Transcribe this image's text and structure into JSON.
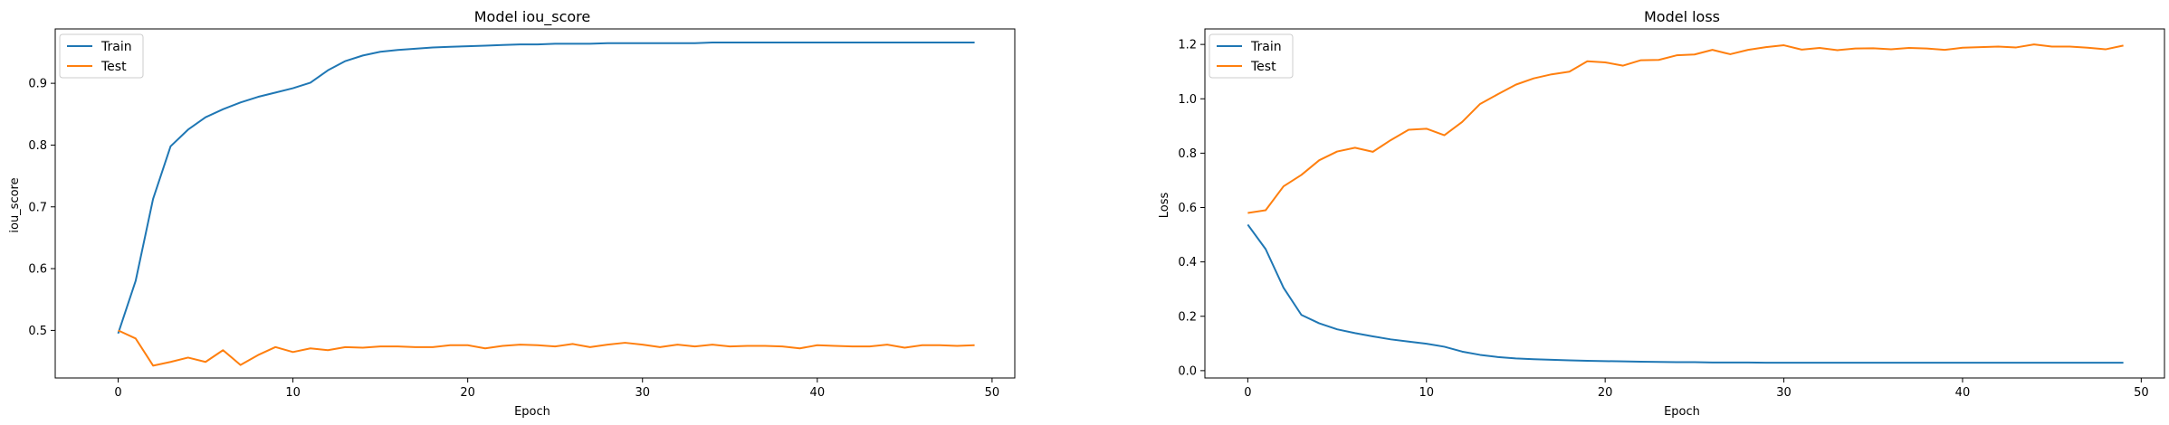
{
  "chart_data": [
    {
      "type": "line",
      "title": "Model iou_score",
      "xlabel": "Epoch",
      "ylabel": "iou_score",
      "xlim": [
        -3.6,
        51.3
      ],
      "ylim": [
        0.423,
        0.988
      ],
      "xticks": [
        0,
        10,
        20,
        30,
        40,
        50
      ],
      "yticks": [
        0.5,
        0.6,
        0.7,
        0.8,
        0.9
      ],
      "ytick_decimals": 1,
      "grid": false,
      "legend": "top-left",
      "x": [
        0,
        1,
        2,
        3,
        4,
        5,
        6,
        7,
        8,
        9,
        10,
        11,
        12,
        13,
        14,
        15,
        16,
        17,
        18,
        19,
        20,
        21,
        22,
        23,
        24,
        25,
        26,
        27,
        28,
        29,
        30,
        31,
        32,
        33,
        34,
        35,
        36,
        37,
        38,
        39,
        40,
        41,
        42,
        43,
        44,
        45,
        46,
        47,
        48,
        49
      ],
      "series": [
        {
          "name": "Train",
          "color": "#1f77b4",
          "values": [
            0.495,
            0.58,
            0.713,
            0.798,
            0.825,
            0.845,
            0.858,
            0.869,
            0.878,
            0.885,
            0.892,
            0.901,
            0.921,
            0.936,
            0.945,
            0.951,
            0.954,
            0.956,
            0.958,
            0.959,
            0.96,
            0.961,
            0.962,
            0.963,
            0.963,
            0.964,
            0.964,
            0.964,
            0.965,
            0.965,
            0.965,
            0.965,
            0.965,
            0.965,
            0.966,
            0.966,
            0.966,
            0.966,
            0.966,
            0.966,
            0.966,
            0.966,
            0.966,
            0.966,
            0.966,
            0.966,
            0.966,
            0.966,
            0.966,
            0.966
          ]
        },
        {
          "name": "Test",
          "color": "#ff7f0e",
          "values": [
            0.5,
            0.487,
            0.443,
            0.449,
            0.456,
            0.449,
            0.468,
            0.444,
            0.46,
            0.473,
            0.465,
            0.471,
            0.468,
            0.473,
            0.472,
            0.474,
            0.474,
            0.473,
            0.473,
            0.476,
            0.476,
            0.471,
            0.475,
            0.477,
            0.476,
            0.474,
            0.478,
            0.473,
            0.477,
            0.48,
            0.477,
            0.473,
            0.477,
            0.474,
            0.477,
            0.474,
            0.475,
            0.475,
            0.474,
            0.471,
            0.476,
            0.475,
            0.474,
            0.474,
            0.477,
            0.472,
            0.476,
            0.476,
            0.475,
            0.476
          ]
        }
      ]
    },
    {
      "type": "line",
      "title": "Model loss",
      "xlabel": "Epoch",
      "ylabel": "Loss",
      "xlim": [
        -2.4,
        51.3
      ],
      "ylim": [
        -0.027,
        1.257
      ],
      "xticks": [
        0,
        10,
        20,
        30,
        40,
        50
      ],
      "yticks": [
        0.0,
        0.2,
        0.4,
        0.6,
        0.8,
        1.0,
        1.2
      ],
      "ytick_decimals": 1,
      "grid": false,
      "legend": "top-left",
      "x": [
        0,
        1,
        2,
        3,
        4,
        5,
        6,
        7,
        8,
        9,
        10,
        11,
        12,
        13,
        14,
        15,
        16,
        17,
        18,
        19,
        20,
        21,
        22,
        23,
        24,
        25,
        26,
        27,
        28,
        29,
        30,
        31,
        32,
        33,
        34,
        35,
        36,
        37,
        38,
        39,
        40,
        41,
        42,
        43,
        44,
        45,
        46,
        47,
        48,
        49
      ],
      "series": [
        {
          "name": "Train",
          "color": "#1f77b4",
          "values": [
            0.537,
            0.447,
            0.305,
            0.205,
            0.174,
            0.152,
            0.138,
            0.126,
            0.115,
            0.107,
            0.099,
            0.088,
            0.07,
            0.058,
            0.05,
            0.045,
            0.042,
            0.04,
            0.038,
            0.036,
            0.035,
            0.034,
            0.033,
            0.032,
            0.031,
            0.031,
            0.03,
            0.03,
            0.03,
            0.029,
            0.029,
            0.029,
            0.029,
            0.029,
            0.029,
            0.029,
            0.029,
            0.029,
            0.029,
            0.029,
            0.029,
            0.029,
            0.029,
            0.029,
            0.029,
            0.029,
            0.029,
            0.029,
            0.029,
            0.029
          ]
        },
        {
          "name": "Test",
          "color": "#ff7f0e",
          "values": [
            0.58,
            0.59,
            0.678,
            0.72,
            0.774,
            0.806,
            0.82,
            0.805,
            0.848,
            0.886,
            0.89,
            0.866,
            0.915,
            0.981,
            1.017,
            1.052,
            1.075,
            1.09,
            1.1,
            1.138,
            1.134,
            1.122,
            1.142,
            1.143,
            1.16,
            1.163,
            1.18,
            1.164,
            1.18,
            1.19,
            1.197,
            1.181,
            1.187,
            1.179,
            1.185,
            1.186,
            1.182,
            1.187,
            1.185,
            1.18,
            1.188,
            1.19,
            1.192,
            1.189,
            1.2,
            1.192,
            1.192,
            1.188,
            1.182,
            1.196
          ]
        }
      ]
    }
  ]
}
